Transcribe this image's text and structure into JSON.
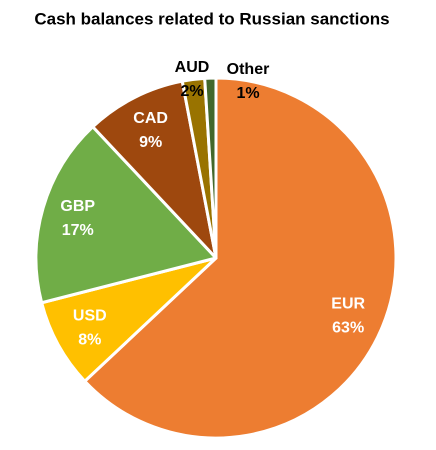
{
  "chart_data": {
    "type": "pie",
    "title": "Cash balances related to Russian sanctions",
    "categories": [
      "EUR",
      "USD",
      "GBP",
      "CAD",
      "AUD",
      "Other"
    ],
    "values": [
      63,
      8,
      17,
      9,
      2,
      1
    ],
    "value_labels": [
      "63%",
      "8%",
      "17%",
      "9%",
      "2%",
      "1%"
    ],
    "colors": [
      "#ED7D31",
      "#FFC000",
      "#70AD47",
      "#9E480E",
      "#997300",
      "#43682B"
    ]
  }
}
